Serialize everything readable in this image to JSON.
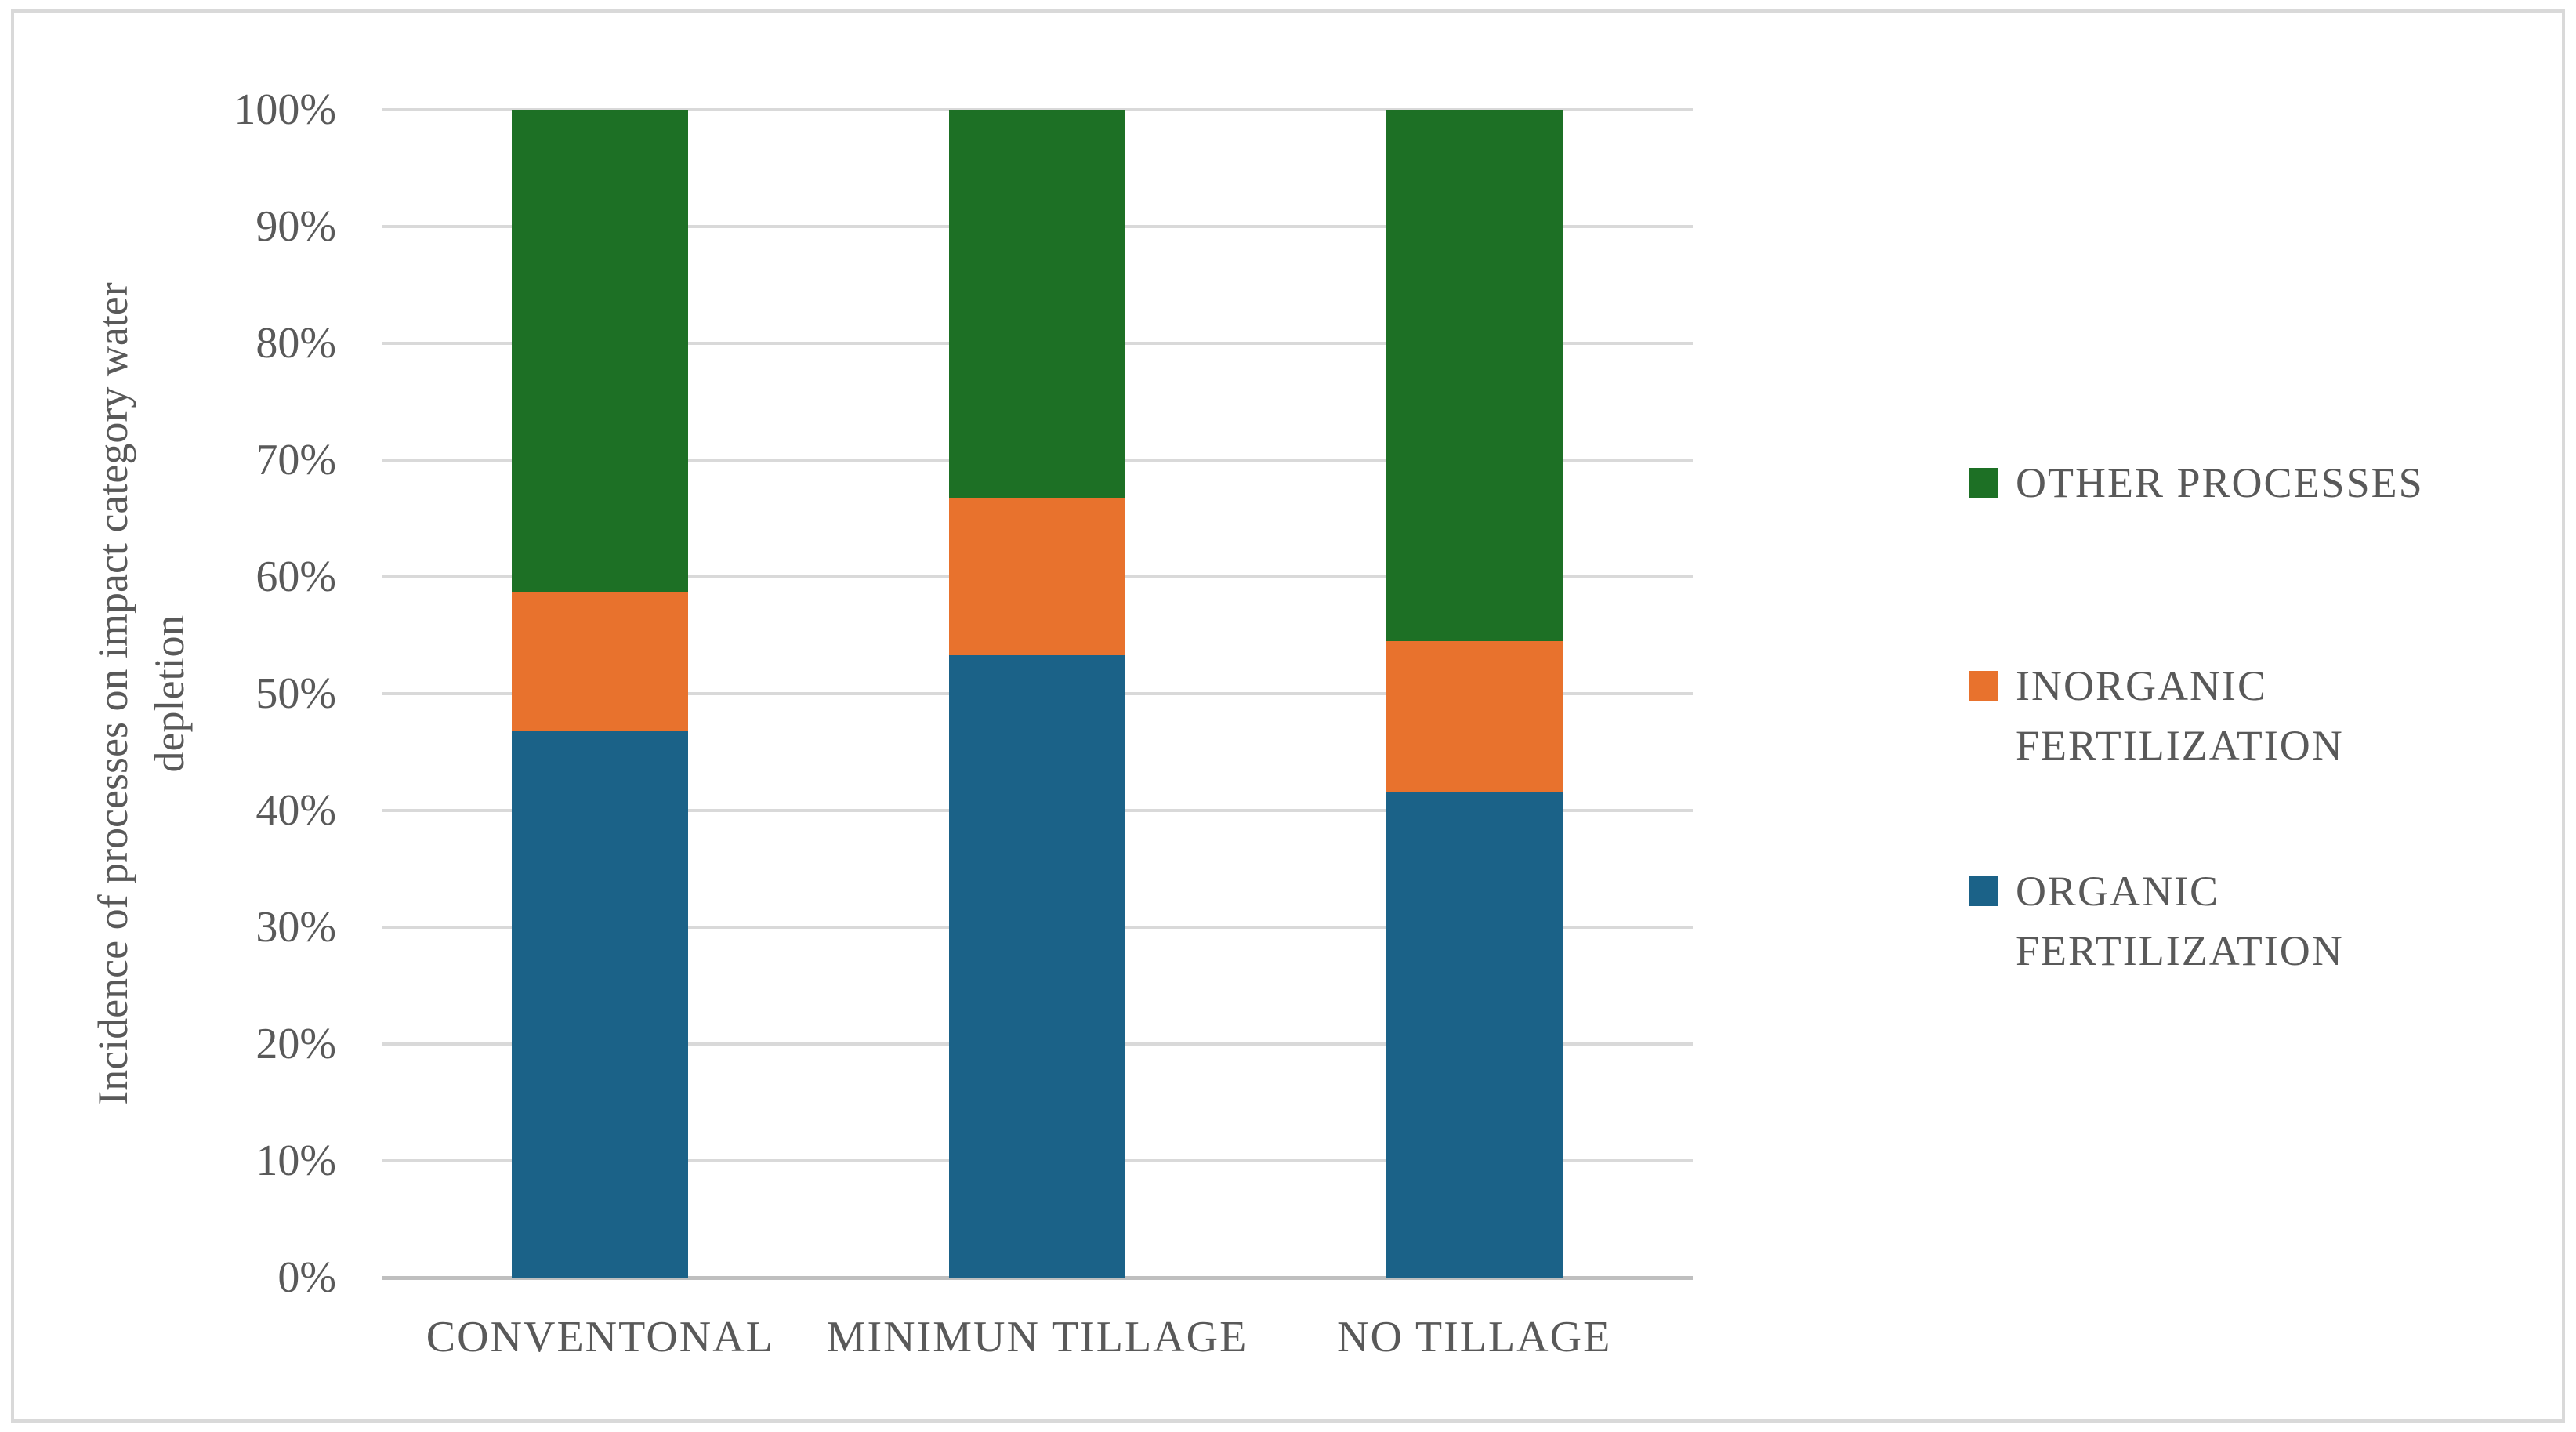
{
  "chart_data": {
    "type": "bar",
    "subtype": "stacked-100-percent",
    "categories": [
      "CONVENTONAL",
      "MINIMUN TILLAGE",
      "NO TILLAGE"
    ],
    "series": [
      {
        "name": "ORGANIC FERTILIZATION",
        "color": "#1B6288",
        "values": [
          46.8,
          53.3,
          41.6
        ]
      },
      {
        "name": "INORGANIC FERTILIZATION",
        "color": "#E8722D",
        "values": [
          11.9,
          13.4,
          12.9
        ]
      },
      {
        "name": "OTHER PROCESSES",
        "color": "#1D7025",
        "values": [
          41.3,
          33.3,
          45.5
        ]
      }
    ],
    "stack_order": "bottom-to-top",
    "xlabel": "",
    "ylabel": "Incidence of processes on impact category water depletion",
    "ylabel_lines": [
      "Incidence of processes on impact category water",
      "depletion"
    ],
    "yticks": [
      "0%",
      "10%",
      "20%",
      "30%",
      "40%",
      "50%",
      "60%",
      "70%",
      "80%",
      "90%",
      "100%"
    ],
    "ylim": [
      0,
      100
    ],
    "grid": true,
    "legend_position": "right",
    "legend_order_top_to_bottom": [
      "OTHER PROCESSES",
      "INORGANIC FERTILIZATION",
      "ORGANIC FERTILIZATION"
    ]
  },
  "colors": {
    "text": "#595959",
    "gridline": "#D9D9D9",
    "axis_line": "#BFBFBF",
    "frame_border": "#D9D9D9",
    "background": "#FFFFFF"
  }
}
